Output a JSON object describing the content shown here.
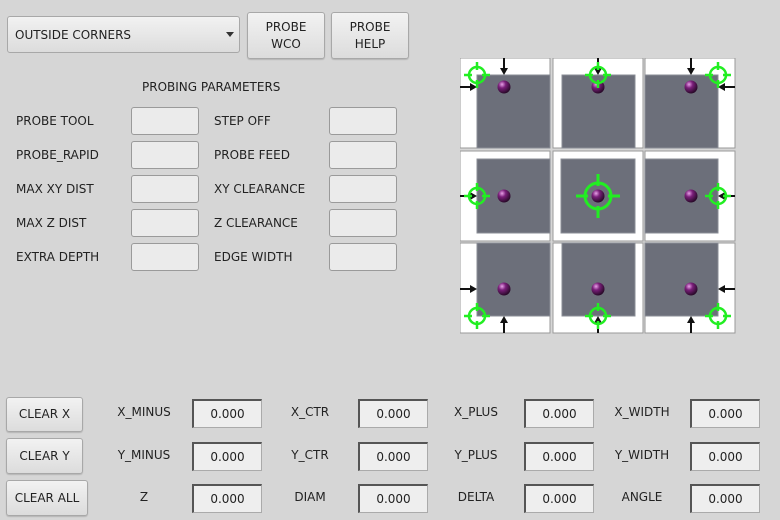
{
  "toolbar": {
    "mode_select": "OUTSIDE CORNERS",
    "probe_wco": "PROBE\nWCO",
    "probe_help": "PROBE\nHELP"
  },
  "params": {
    "title": "PROBING PARAMETERS",
    "left": [
      {
        "label": "PROBE TOOL",
        "value": ""
      },
      {
        "label": "PROBE_RAPID",
        "value": ""
      },
      {
        "label": "MAX XY DIST",
        "value": ""
      },
      {
        "label": "MAX Z DIST",
        "value": ""
      },
      {
        "label": "EXTRA DEPTH",
        "value": ""
      }
    ],
    "right": [
      {
        "label": "STEP OFF",
        "value": ""
      },
      {
        "label": "PROBE FEED",
        "value": ""
      },
      {
        "label": "XY CLEARANCE",
        "value": ""
      },
      {
        "label": "Z CLEARANCE",
        "value": ""
      },
      {
        "label": "EDGE WIDTH",
        "value": ""
      }
    ]
  },
  "diagram": {
    "selected": "center",
    "cells": [
      "top-left",
      "top-center",
      "top-right",
      "middle-left",
      "center",
      "middle-right",
      "bottom-left",
      "bottom-center",
      "bottom-right"
    ],
    "colors": {
      "stock": "#6c6f7a",
      "target": "#22ee22",
      "sphere": "#7a1f7a",
      "arrow": "#111111"
    }
  },
  "results": {
    "clear_x": "CLEAR X",
    "clear_y": "CLEAR Y",
    "clear_all": "CLEAR ALL",
    "rows": [
      [
        {
          "label": "X_MINUS",
          "value": "0.000"
        },
        {
          "label": "X_CTR",
          "value": "0.000"
        },
        {
          "label": "X_PLUS",
          "value": "0.000"
        },
        {
          "label": "X_WIDTH",
          "value": "0.000"
        }
      ],
      [
        {
          "label": "Y_MINUS",
          "value": "0.000"
        },
        {
          "label": "Y_CTR",
          "value": "0.000"
        },
        {
          "label": "Y_PLUS",
          "value": "0.000"
        },
        {
          "label": "Y_WIDTH",
          "value": "0.000"
        }
      ],
      [
        {
          "label": "Z",
          "value": "0.000"
        },
        {
          "label": "DIAM",
          "value": "0.000"
        },
        {
          "label": "DELTA",
          "value": "0.000"
        },
        {
          "label": "ANGLE",
          "value": "0.000"
        }
      ]
    ]
  }
}
